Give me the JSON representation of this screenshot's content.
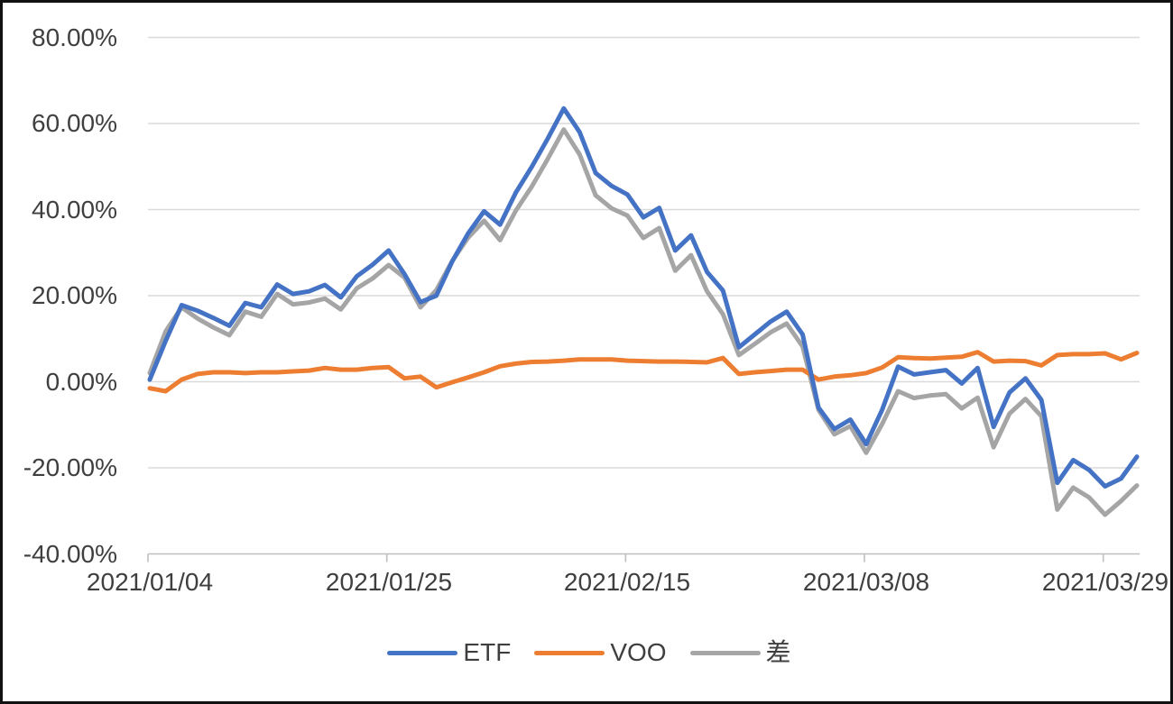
{
  "chart_data": {
    "type": "line",
    "title": "",
    "xlabel": "",
    "ylabel": "",
    "grid": true,
    "legend_position": "bottom",
    "ylim": [
      -40,
      80
    ],
    "y_tick_step": 20,
    "y_ticks": [
      "80.00%",
      "60.00%",
      "40.00%",
      "20.00%",
      "0.00%",
      "-20.00%",
      "-40.00%"
    ],
    "x_tick_labels": [
      "2021/01/04",
      "2021/01/25",
      "2021/02/15",
      "2021/03/08",
      "2021/03/29"
    ],
    "x_tick_indices": [
      0,
      15,
      30,
      45,
      60
    ],
    "x": [
      "2021/01/04",
      "2021/01/05",
      "2021/01/06",
      "2021/01/07",
      "2021/01/08",
      "2021/01/11",
      "2021/01/12",
      "2021/01/13",
      "2021/01/14",
      "2021/01/15",
      "2021/01/18",
      "2021/01/19",
      "2021/01/20",
      "2021/01/21",
      "2021/01/22",
      "2021/01/25",
      "2021/01/26",
      "2021/01/27",
      "2021/01/28",
      "2021/01/29",
      "2021/02/01",
      "2021/02/02",
      "2021/02/03",
      "2021/02/04",
      "2021/02/05",
      "2021/02/08",
      "2021/02/09",
      "2021/02/10",
      "2021/02/11",
      "2021/02/12",
      "2021/02/15",
      "2021/02/16",
      "2021/02/17",
      "2021/02/18",
      "2021/02/19",
      "2021/02/22",
      "2021/02/23",
      "2021/02/24",
      "2021/02/25",
      "2021/02/26",
      "2021/03/01",
      "2021/03/02",
      "2021/03/03",
      "2021/03/04",
      "2021/03/05",
      "2021/03/08",
      "2021/03/09",
      "2021/03/10",
      "2021/03/11",
      "2021/03/12",
      "2021/03/15",
      "2021/03/16",
      "2021/03/17",
      "2021/03/18",
      "2021/03/19",
      "2021/03/22",
      "2021/03/23",
      "2021/03/24",
      "2021/03/25",
      "2021/03/26",
      "2021/03/29",
      "2021/03/30",
      "2021/03/31"
    ],
    "series": [
      {
        "name": "ETF",
        "color": "#4472C4",
        "values": [
          0.5,
          9.5,
          17.8,
          16.5,
          14.8,
          13.0,
          18.3,
          17.3,
          22.6,
          20.4,
          21.0,
          22.5,
          19.6,
          24.5,
          27.2,
          30.5,
          25.0,
          18.5,
          20.0,
          28.0,
          34.5,
          39.6,
          36.5,
          44.0,
          50.0,
          56.5,
          63.5,
          58.0,
          48.5,
          45.5,
          43.5,
          38.2,
          40.4,
          30.5,
          34.0,
          25.5,
          21.2,
          8.0,
          11.0,
          14.0,
          16.3,
          11.0,
          -6.0,
          -11.0,
          -8.8,
          -14.5,
          -6.5,
          3.5,
          1.7,
          2.2,
          2.7,
          -0.4,
          3.2,
          -10.5,
          -2.5,
          0.8,
          -4.2,
          -23.5,
          -18.2,
          -20.5,
          -24.3,
          -22.5,
          -17.4
        ]
      },
      {
        "name": "VOO",
        "color": "#ED7D31",
        "values": [
          -1.5,
          -2.2,
          0.5,
          1.8,
          2.2,
          2.2,
          2.0,
          2.2,
          2.2,
          2.4,
          2.6,
          3.2,
          2.8,
          2.8,
          3.2,
          3.4,
          0.8,
          1.2,
          -1.3,
          -0.1,
          1.0,
          2.2,
          3.6,
          4.2,
          4.6,
          4.7,
          4.9,
          5.2,
          5.2,
          5.2,
          4.9,
          4.8,
          4.7,
          4.7,
          4.6,
          4.5,
          5.5,
          1.8,
          2.2,
          2.5,
          2.8,
          2.8,
          0.5,
          1.2,
          1.5,
          2.0,
          3.3,
          5.7,
          5.5,
          5.4,
          5.6,
          5.8,
          6.9,
          4.7,
          4.9,
          4.8,
          3.8,
          6.2,
          6.4,
          6.4,
          6.6,
          5.2,
          6.7
        ]
      },
      {
        "name": "差",
        "color": "#A5A5A5",
        "values": [
          2.0,
          11.7,
          17.3,
          14.7,
          12.6,
          10.8,
          16.3,
          15.1,
          20.4,
          18.0,
          18.4,
          19.3,
          16.8,
          21.7,
          24.0,
          27.1,
          24.2,
          17.3,
          21.3,
          28.1,
          33.5,
          37.4,
          32.9,
          39.8,
          45.4,
          51.8,
          58.6,
          52.8,
          43.3,
          40.3,
          38.6,
          33.4,
          35.7,
          25.8,
          29.4,
          21.0,
          15.7,
          6.2,
          8.8,
          11.5,
          13.5,
          8.2,
          -6.5,
          -12.2,
          -10.3,
          -16.5,
          -9.8,
          -2.2,
          -3.8,
          -3.2,
          -2.9,
          -6.2,
          -3.7,
          -15.2,
          -7.4,
          -4.0,
          -8.0,
          -29.7,
          -24.6,
          -26.9,
          -30.9,
          -27.7,
          -24.1
        ]
      }
    ],
    "colors": {
      "gridline": "#DADADA",
      "axis_line": "#BFBFBF",
      "tick_text": "#3F3F3F",
      "background": "#FFFFFF",
      "frame_border": "#111111"
    }
  }
}
